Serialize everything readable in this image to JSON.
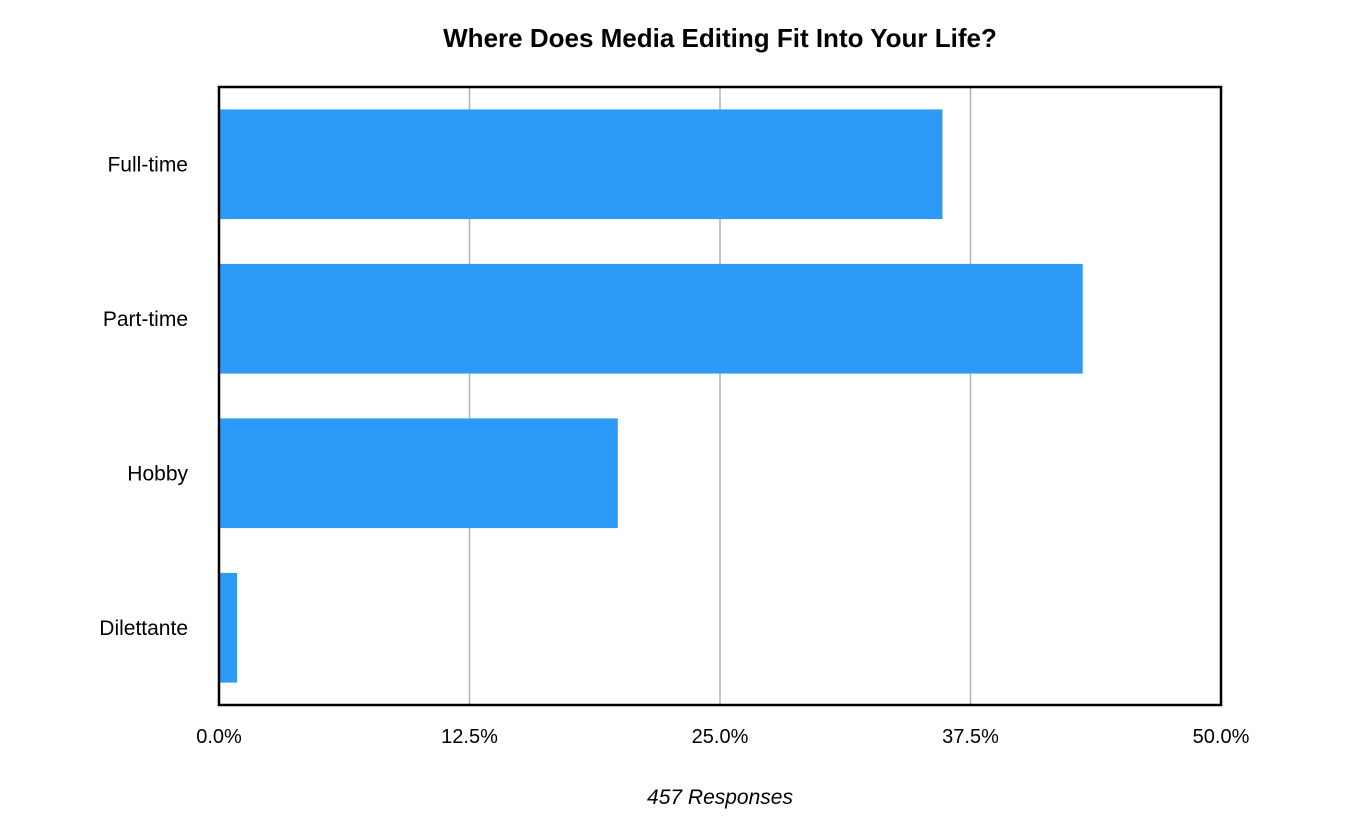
{
  "chart_data": {
    "type": "bar",
    "orientation": "horizontal",
    "title": "Where Does Media Editing Fit Into Your Life?",
    "xlabel": "457 Responses",
    "ylabel": "",
    "categories": [
      "Full-time",
      "Part-time",
      "Hobby",
      "Dilettante"
    ],
    "values": [
      36.1,
      43.1,
      19.9,
      0.9
    ],
    "xlim": [
      0,
      50
    ],
    "x_ticks": [
      0,
      12.5,
      25,
      37.5,
      50
    ],
    "x_tick_labels": [
      "0.0%",
      "12.5%",
      "25.0%",
      "37.5%",
      "50.0%"
    ],
    "grid": "vertical",
    "legend": "none",
    "bar_color": "#2e9af7",
    "grid_color": "#b3b3b3",
    "frame_color": "#000000"
  }
}
